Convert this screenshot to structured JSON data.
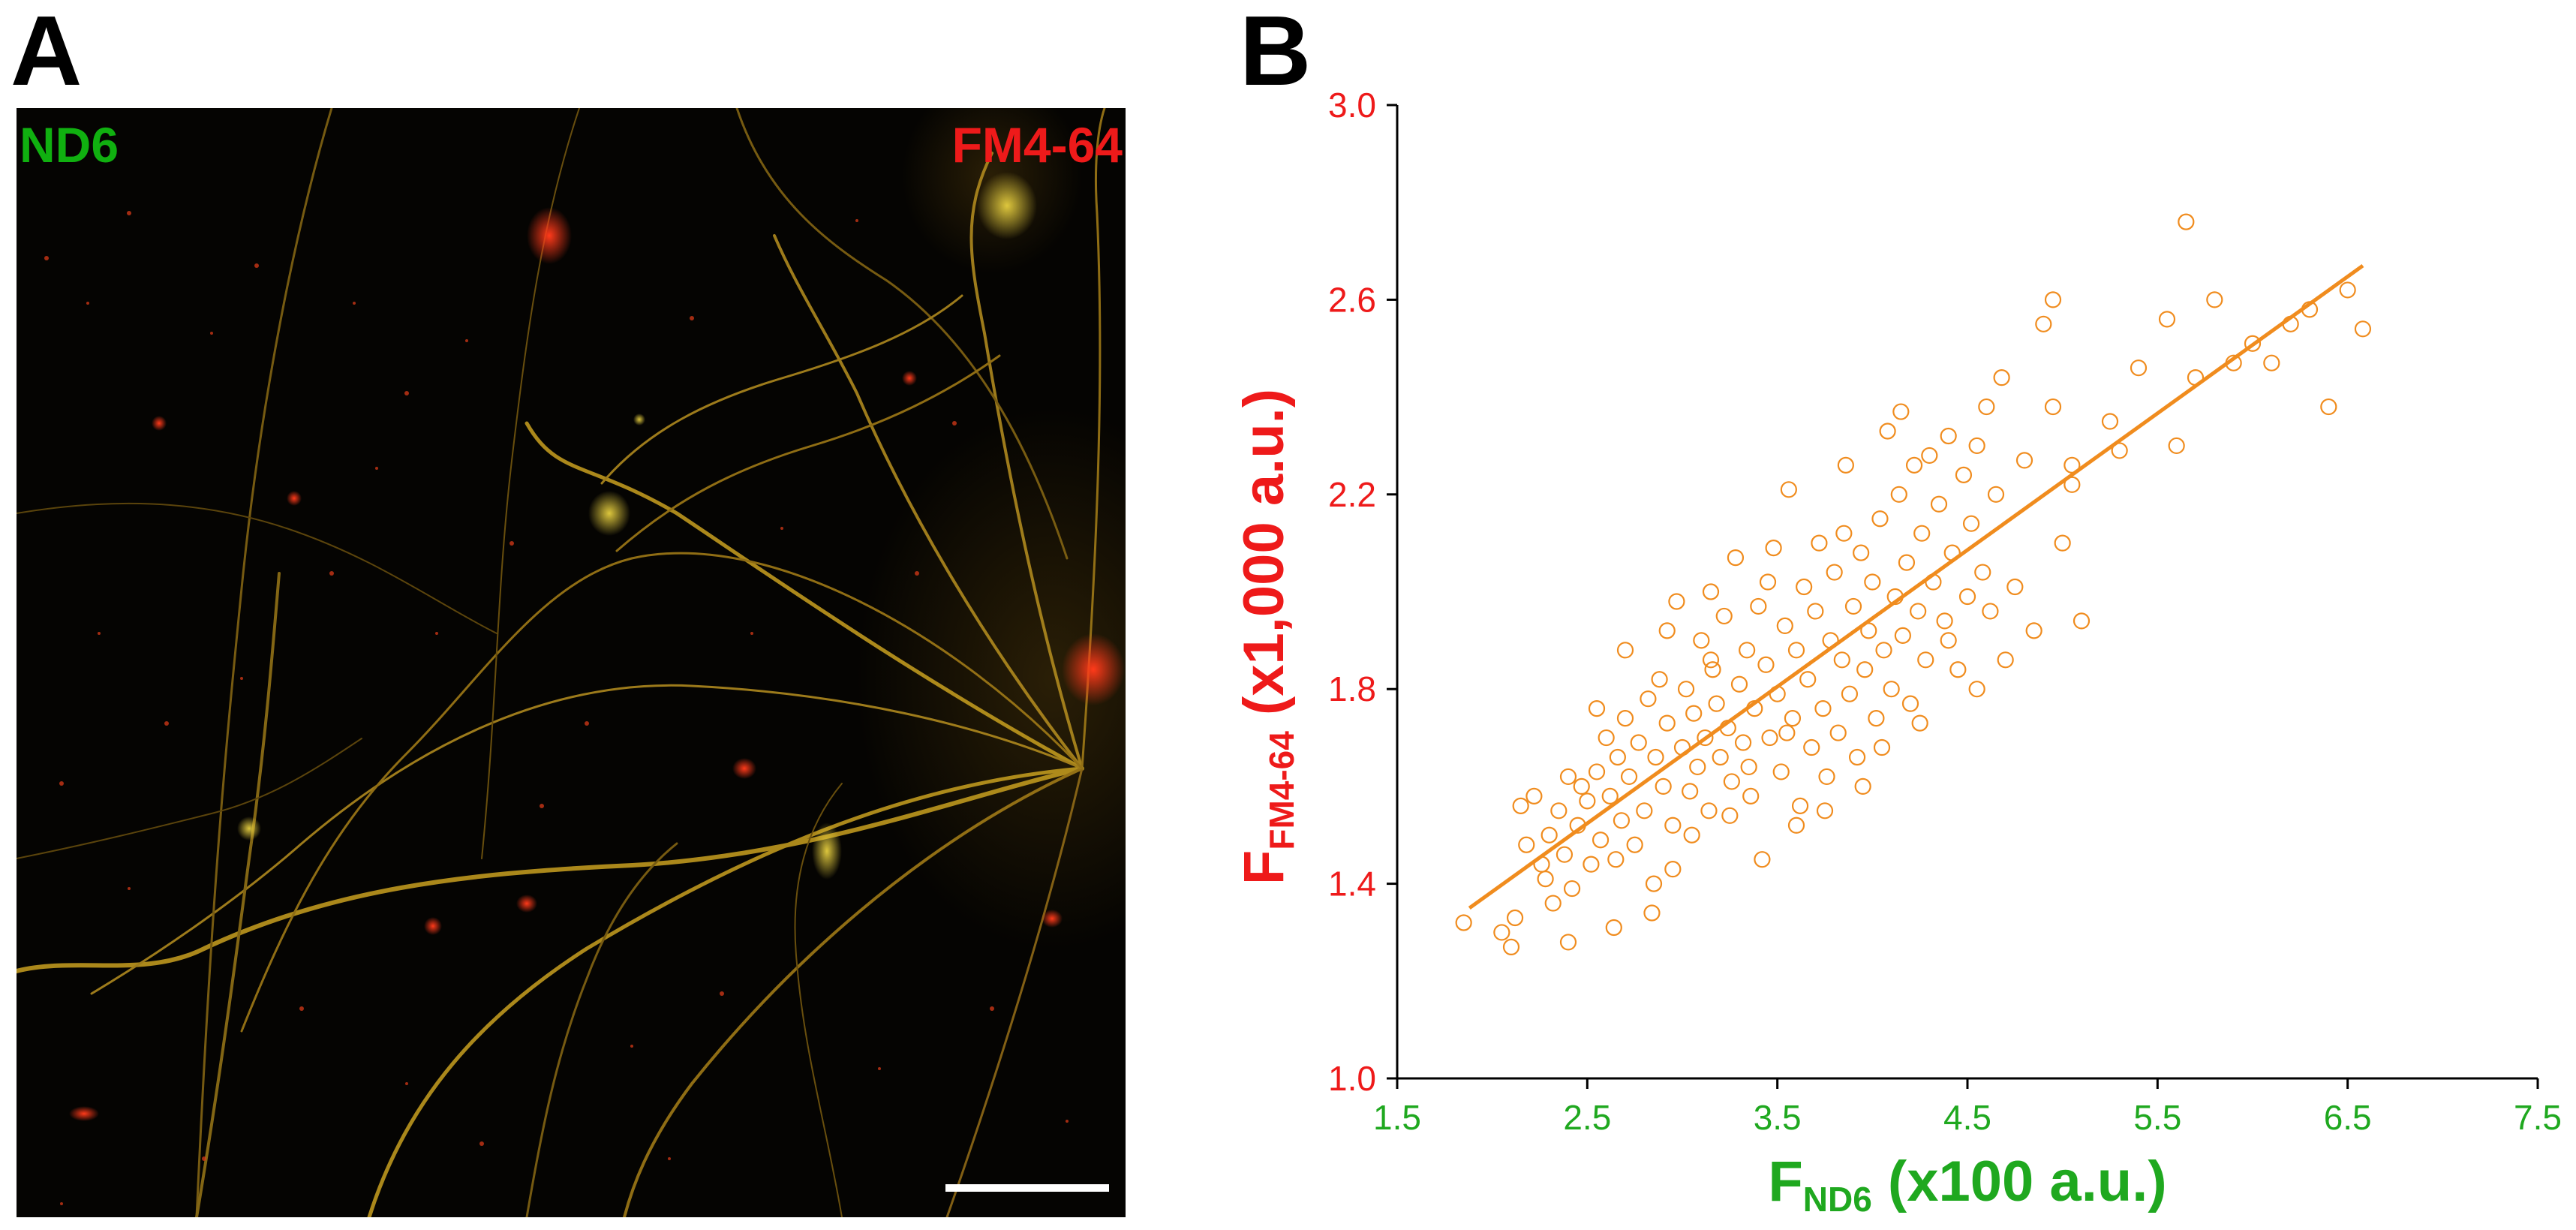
{
  "panel_a": {
    "letter": "A",
    "channel_left_label": "ND6",
    "channel_right_label": "FM4-64",
    "colors": {
      "nd6": "#10b010",
      "fm4_64": "#ee1a1a",
      "background": "#050402"
    }
  },
  "panel_b": {
    "letter": "B"
  },
  "chart_data": {
    "type": "scatter",
    "title": "",
    "xlabel": {
      "main": "F",
      "sub": "ND6",
      "rest": " (x100 a.u.)"
    },
    "ylabel": {
      "main": "F",
      "sub": "FM4-64",
      "rest": " (x1,000 a.u.)"
    },
    "xlim": [
      1.5,
      7.5
    ],
    "ylim": [
      1.0,
      3.0
    ],
    "x_ticks": [
      "1.5",
      "2.5",
      "3.5",
      "4.5",
      "5.5",
      "6.5",
      "7.5"
    ],
    "y_ticks": [
      "1.0",
      "1.4",
      "1.8",
      "2.2",
      "2.6",
      "3.0"
    ],
    "grid": false,
    "colors": {
      "points": "#f08c1e",
      "fit_line": "#f08c1e",
      "x_axis_text": "#1fa81f",
      "y_axis_text": "#ee1a1a"
    },
    "fit_line": {
      "x": [
        1.88,
        6.58
      ],
      "y": [
        1.35,
        2.67
      ]
    },
    "series": [
      {
        "points": [
          [
            1.85,
            1.32
          ],
          [
            2.05,
            1.3
          ],
          [
            2.1,
            1.27
          ],
          [
            2.12,
            1.33
          ],
          [
            2.15,
            1.56
          ],
          [
            2.18,
            1.48
          ],
          [
            2.22,
            1.58
          ],
          [
            2.26,
            1.44
          ],
          [
            2.28,
            1.41
          ],
          [
            2.3,
            1.5
          ],
          [
            2.32,
            1.36
          ],
          [
            2.35,
            1.55
          ],
          [
            2.38,
            1.46
          ],
          [
            2.4,
            1.28
          ],
          [
            2.42,
            1.39
          ],
          [
            2.45,
            1.52
          ],
          [
            2.47,
            1.6
          ],
          [
            2.5,
            1.57
          ],
          [
            2.52,
            1.44
          ],
          [
            2.55,
            1.63
          ],
          [
            2.57,
            1.49
          ],
          [
            2.6,
            1.7
          ],
          [
            2.62,
            1.58
          ],
          [
            2.64,
            1.31
          ],
          [
            2.66,
            1.66
          ],
          [
            2.68,
            1.53
          ],
          [
            2.7,
            1.74
          ],
          [
            2.72,
            1.62
          ],
          [
            2.75,
            1.48
          ],
          [
            2.77,
            1.69
          ],
          [
            2.8,
            1.55
          ],
          [
            2.82,
            1.78
          ],
          [
            2.84,
            1.34
          ],
          [
            2.86,
            1.66
          ],
          [
            2.88,
            1.82
          ],
          [
            2.9,
            1.6
          ],
          [
            2.92,
            1.73
          ],
          [
            2.95,
            1.52
          ],
          [
            2.97,
            1.98
          ],
          [
            3.0,
            1.68
          ],
          [
            3.02,
            1.8
          ],
          [
            3.04,
            1.59
          ],
          [
            3.06,
            1.75
          ],
          [
            3.08,
            1.64
          ],
          [
            3.1,
            1.9
          ],
          [
            3.12,
            1.7
          ],
          [
            3.14,
            1.55
          ],
          [
            3.16,
            1.84
          ],
          [
            3.18,
            1.77
          ],
          [
            3.2,
            1.66
          ],
          [
            3.22,
            1.95
          ],
          [
            3.24,
            1.72
          ],
          [
            3.26,
            1.61
          ],
          [
            3.28,
            2.07
          ],
          [
            3.3,
            1.81
          ],
          [
            3.32,
            1.69
          ],
          [
            3.34,
            1.88
          ],
          [
            3.36,
            1.58
          ],
          [
            3.38,
            1.76
          ],
          [
            3.4,
            1.97
          ],
          [
            3.42,
            1.45
          ],
          [
            3.44,
            1.85
          ],
          [
            3.46,
            1.7
          ],
          [
            3.48,
            2.09
          ],
          [
            3.5,
            1.79
          ],
          [
            3.52,
            1.63
          ],
          [
            3.54,
            1.93
          ],
          [
            3.56,
            2.21
          ],
          [
            3.58,
            1.74
          ],
          [
            3.6,
            1.88
          ],
          [
            3.62,
            1.56
          ],
          [
            3.64,
            2.01
          ],
          [
            3.66,
            1.82
          ],
          [
            3.68,
            1.68
          ],
          [
            3.7,
            1.96
          ],
          [
            3.72,
            2.1
          ],
          [
            3.74,
            1.76
          ],
          [
            3.76,
            1.62
          ],
          [
            3.78,
            1.9
          ],
          [
            3.8,
            2.04
          ],
          [
            3.82,
            1.71
          ],
          [
            3.84,
            1.86
          ],
          [
            3.86,
            2.26
          ],
          [
            3.88,
            1.79
          ],
          [
            3.9,
            1.97
          ],
          [
            3.92,
            1.66
          ],
          [
            3.94,
            2.08
          ],
          [
            3.96,
            1.84
          ],
          [
            3.98,
            1.92
          ],
          [
            4.0,
            2.02
          ],
          [
            4.02,
            1.74
          ],
          [
            4.04,
            2.15
          ],
          [
            4.06,
            1.88
          ],
          [
            4.08,
            2.33
          ],
          [
            4.1,
            1.8
          ],
          [
            4.12,
            1.99
          ],
          [
            4.14,
            2.2
          ],
          [
            4.16,
            1.91
          ],
          [
            4.18,
            2.06
          ],
          [
            4.2,
            1.77
          ],
          [
            4.22,
            2.26
          ],
          [
            4.24,
            1.96
          ],
          [
            4.26,
            2.12
          ],
          [
            4.28,
            1.86
          ],
          [
            4.3,
            2.28
          ],
          [
            4.32,
            2.02
          ],
          [
            4.35,
            2.18
          ],
          [
            4.38,
            1.94
          ],
          [
            4.4,
            2.32
          ],
          [
            4.42,
            2.08
          ],
          [
            4.45,
            1.84
          ],
          [
            4.48,
            2.24
          ],
          [
            4.5,
            1.99
          ],
          [
            4.52,
            2.14
          ],
          [
            4.55,
            2.3
          ],
          [
            4.58,
            2.04
          ],
          [
            4.6,
            2.38
          ],
          [
            4.62,
            1.96
          ],
          [
            4.65,
            2.2
          ],
          [
            4.68,
            2.44
          ],
          [
            4.7,
            1.86
          ],
          [
            4.75,
            2.01
          ],
          [
            4.8,
            2.27
          ],
          [
            4.85,
            1.92
          ],
          [
            4.9,
            2.55
          ],
          [
            4.95,
            2.38
          ],
          [
            5.0,
            2.1
          ],
          [
            5.05,
            2.26
          ],
          [
            5.1,
            1.94
          ],
          [
            5.25,
            2.35
          ],
          [
            5.4,
            2.46
          ],
          [
            5.55,
            2.56
          ],
          [
            5.6,
            2.3
          ],
          [
            5.65,
            2.76
          ],
          [
            5.7,
            2.44
          ],
          [
            5.8,
            2.6
          ],
          [
            5.9,
            2.47
          ],
          [
            6.0,
            2.51
          ],
          [
            6.1,
            2.47
          ],
          [
            6.2,
            2.55
          ],
          [
            6.3,
            2.58
          ],
          [
            6.4,
            2.38
          ],
          [
            6.5,
            2.62
          ],
          [
            6.58,
            2.54
          ],
          [
            3.05,
            1.5
          ],
          [
            2.95,
            1.43
          ],
          [
            3.25,
            1.54
          ],
          [
            3.6,
            1.52
          ],
          [
            2.7,
            1.88
          ],
          [
            3.15,
            2.0
          ],
          [
            4.25,
            1.73
          ],
          [
            4.55,
            1.8
          ],
          [
            5.05,
            2.22
          ],
          [
            4.95,
            2.6
          ],
          [
            5.3,
            2.29
          ],
          [
            3.85,
            2.12
          ],
          [
            4.15,
            2.37
          ],
          [
            2.55,
            1.76
          ],
          [
            2.4,
            1.62
          ],
          [
            3.35,
            1.64
          ],
          [
            3.95,
            1.6
          ],
          [
            4.05,
            1.68
          ],
          [
            3.45,
            2.02
          ],
          [
            2.85,
            1.4
          ],
          [
            2.65,
            1.45
          ],
          [
            3.75,
            1.55
          ],
          [
            4.4,
            1.9
          ],
          [
            3.55,
            1.71
          ],
          [
            3.15,
            1.86
          ],
          [
            2.92,
            1.92
          ]
        ]
      }
    ]
  }
}
